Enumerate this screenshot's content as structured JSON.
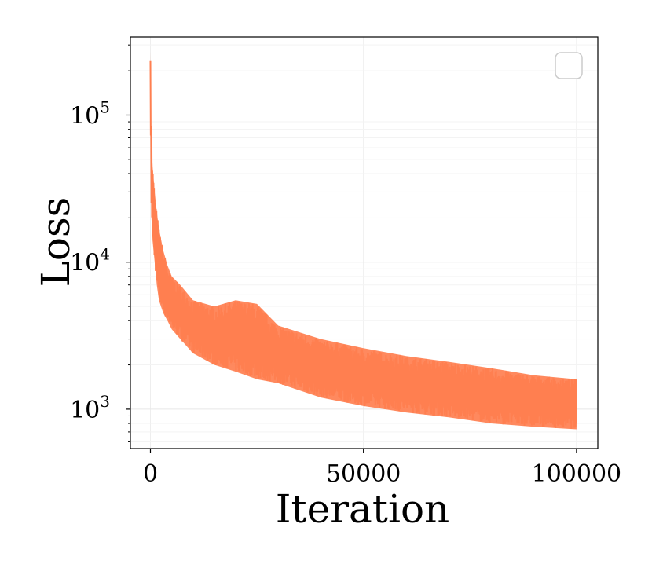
{
  "chart_data": {
    "type": "line",
    "xlabel": "Iteration",
    "ylabel": "Loss",
    "yscale": "log",
    "xlim": [
      -4700,
      105000
    ],
    "ylim": [
      540,
      340000
    ],
    "grid": true,
    "legend": "top-right (empty box)",
    "line_color": "#ff7f50",
    "x_ticks": [
      {
        "value": 0,
        "label": "0"
      },
      {
        "value": 50000,
        "label": "50000"
      },
      {
        "value": 100000,
        "label": "100000"
      }
    ],
    "y_ticks": [
      {
        "value": 1000,
        "base": "10",
        "exp": "3"
      },
      {
        "value": 10000,
        "base": "10",
        "exp": "4"
      },
      {
        "value": 100000,
        "base": "10",
        "exp": "5"
      }
    ],
    "series": [
      {
        "x": [
          0,
          100,
          250,
          500,
          1000,
          1500,
          2000,
          3000,
          4000,
          5000,
          7000,
          10000,
          15000,
          20000,
          25000,
          30000,
          40000,
          50000,
          60000,
          70000,
          80000,
          90000,
          100000
        ],
        "y_upper": [
          270000,
          120000,
          70000,
          45000,
          30000,
          22000,
          17000,
          12000,
          9500,
          8000,
          7000,
          5500,
          5000,
          5500,
          5200,
          3700,
          3000,
          2600,
          2300,
          2100,
          1900,
          1700,
          1600
        ],
        "y_lower": [
          150000,
          40000,
          20000,
          14000,
          10000,
          7000,
          5500,
          4500,
          4000,
          3500,
          3000,
          2400,
          2000,
          1800,
          1600,
          1500,
          1200,
          1050,
          950,
          880,
          800,
          760,
          730
        ]
      }
    ]
  }
}
